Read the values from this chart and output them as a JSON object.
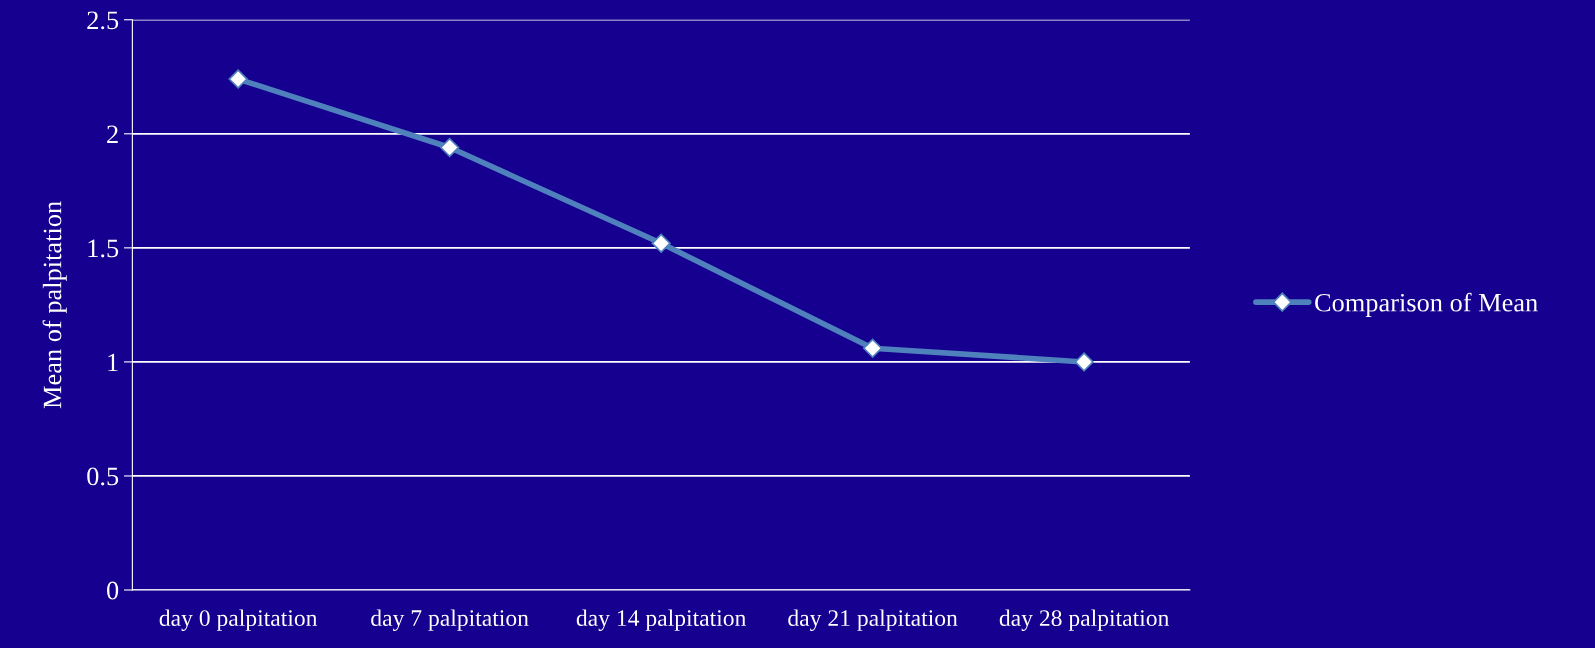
{
  "chart_data": {
    "type": "line",
    "ylabel": "Mean of palpitation",
    "categories": [
      "day 0 palpitation",
      "day 7 palpitation",
      "day 14 palpitation",
      "day 21 palpitation",
      "day 28 palpitation"
    ],
    "series": [
      {
        "name": "Comparison of Mean",
        "color": "#4f81bd",
        "values": [
          2.24,
          1.94,
          1.52,
          1.06,
          1.0
        ]
      }
    ],
    "ylim": [
      0,
      2.5
    ],
    "yticks": [
      0,
      0.5,
      1,
      1.5,
      2,
      2.5
    ],
    "grid": "y",
    "legend": "right",
    "marker": "diamond",
    "line_style": "solid"
  }
}
